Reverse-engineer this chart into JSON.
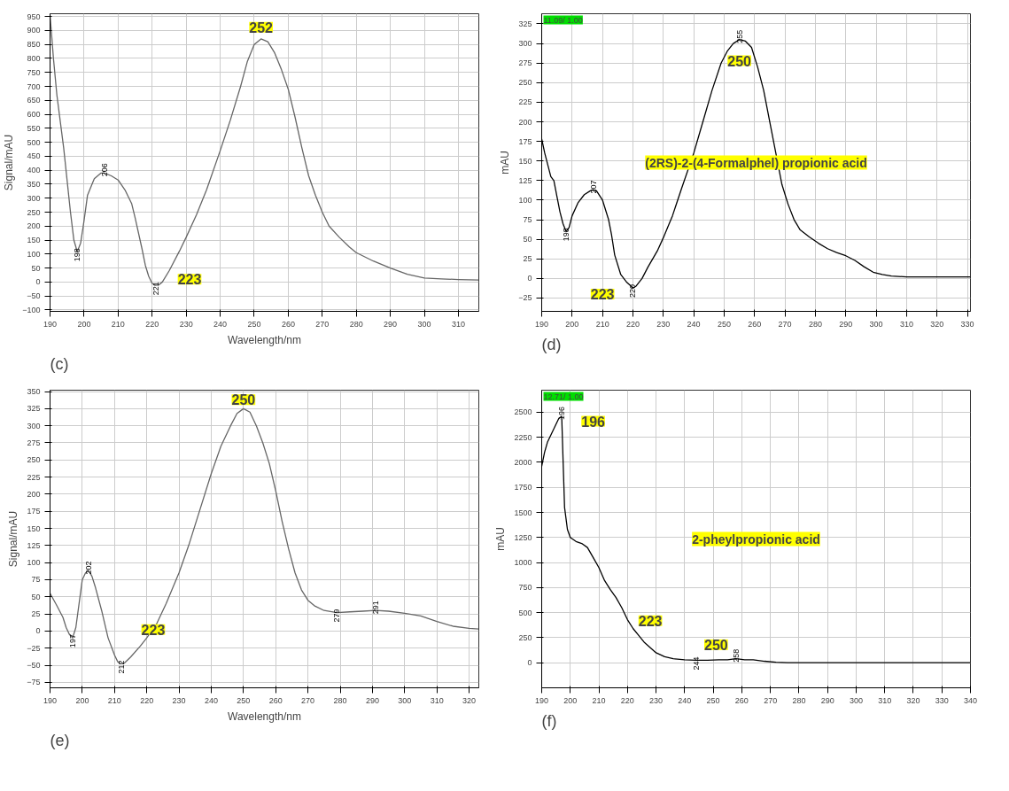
{
  "chart_data": [
    {
      "type": "line",
      "title": "(c)",
      "xlabel": "Wavelength/nm",
      "ylabel": "Signal/mAU",
      "grid": true,
      "xlim": [
        190,
        316
      ],
      "ylim": [
        -105,
        960
      ],
      "xticks": [
        190,
        200,
        210,
        220,
        230,
        240,
        250,
        260,
        270,
        280,
        290,
        300,
        310
      ],
      "yticks": [
        -100,
        -50,
        0,
        50,
        100,
        150,
        200,
        250,
        300,
        350,
        400,
        450,
        500,
        550,
        600,
        650,
        700,
        750,
        800,
        850,
        900,
        950
      ],
      "annotations": [
        {
          "text": "252",
          "x": 252,
          "y": 912
        },
        {
          "text": "223",
          "x": 231,
          "y": 10
        },
        {
          "text": "198",
          "x": 198,
          "y": 108
        },
        {
          "text": "206",
          "x": 206,
          "y": 390
        },
        {
          "text": "221",
          "x": 221,
          "y": -12
        }
      ],
      "series": [
        {
          "color": "#666666",
          "x": [
            190,
            191,
            192,
            194,
            196,
            197,
            198,
            199,
            200,
            201,
            203,
            205,
            206,
            208,
            210,
            212,
            214,
            215,
            217,
            218,
            219,
            220,
            221,
            222,
            223,
            225,
            228,
            230,
            233,
            236,
            240,
            243,
            246,
            248,
            250,
            252,
            254,
            256,
            258,
            260,
            262,
            264,
            266,
            268,
            270,
            272,
            275,
            278,
            280,
            285,
            290,
            295,
            300,
            305,
            310,
            316
          ],
          "values": [
            955,
            800,
            670,
            480,
            250,
            150,
            108,
            140,
            220,
            310,
            370,
            390,
            390,
            380,
            365,
            330,
            280,
            230,
            120,
            60,
            20,
            -5,
            -12,
            -10,
            0,
            40,
            110,
            160,
            240,
            330,
            470,
            580,
            700,
            790,
            850,
            870,
            860,
            820,
            760,
            690,
            590,
            480,
            380,
            310,
            250,
            200,
            160,
            125,
            105,
            75,
            50,
            28,
            14,
            11,
            9,
            7
          ]
        }
      ]
    },
    {
      "type": "line",
      "title": "(d)",
      "subtitle": "(2RS)-2-(4-Formalphel) propionic acid",
      "ylabel": "mAU",
      "grid": true,
      "xlim": [
        190,
        331
      ],
      "ylim": [
        -42,
        338
      ],
      "xticks": [
        190,
        200,
        210,
        220,
        230,
        240,
        250,
        260,
        270,
        280,
        290,
        300,
        310,
        320,
        330
      ],
      "yticks": [
        -25,
        0,
        25,
        50,
        75,
        100,
        125,
        150,
        175,
        200,
        225,
        250,
        275,
        300,
        325
      ],
      "annotations": [
        "11.09/ 1.00",
        {
          "text": "250",
          "x": 255,
          "y": 278
        },
        {
          "text": "223",
          "x": 210,
          "y": -20
        },
        {
          "text": "198",
          "x": 198,
          "y": 60
        },
        {
          "text": "207",
          "x": 207,
          "y": 113
        },
        {
          "text": "220",
          "x": 220,
          "y": -12
        },
        {
          "text": "255",
          "x": 255,
          "y": 305
        }
      ],
      "series": [
        {
          "color": "#000000",
          "x": [
            190,
            191,
            192,
            193,
            194,
            195,
            196,
            197,
            198,
            199,
            200,
            202,
            204,
            206,
            207,
            208,
            210,
            212,
            213,
            214,
            216,
            218,
            220,
            221,
            223,
            225,
            228,
            230,
            233,
            236,
            240,
            243,
            246,
            249,
            251,
            253,
            255,
            257,
            259,
            261,
            263,
            265,
            267,
            269,
            271,
            273,
            275,
            278,
            281,
            284,
            287,
            290,
            293,
            296,
            299,
            302,
            305,
            310,
            320,
            331
          ],
          "values": [
            178,
            160,
            145,
            130,
            125,
            105,
            85,
            70,
            60,
            65,
            80,
            97,
            107,
            112,
            113,
            112,
            100,
            75,
            55,
            30,
            5,
            -5,
            -12,
            -10,
            0,
            15,
            35,
            52,
            80,
            115,
            160,
            200,
            240,
            275,
            290,
            300,
            305,
            303,
            295,
            270,
            240,
            200,
            160,
            120,
            95,
            75,
            62,
            53,
            45,
            38,
            33,
            29,
            23,
            15,
            8,
            5,
            3,
            2,
            2,
            2
          ]
        }
      ]
    },
    {
      "type": "line",
      "title": "(e)",
      "xlabel": "Wavelength/nm",
      "ylabel": "Signal/mAU",
      "grid": true,
      "xlim": [
        190,
        323
      ],
      "ylim": [
        -83,
        352
      ],
      "xticks": [
        190,
        200,
        210,
        220,
        230,
        240,
        250,
        260,
        270,
        280,
        290,
        300,
        310,
        320
      ],
      "yticks": [
        -75,
        -50,
        -25,
        0,
        25,
        50,
        75,
        100,
        125,
        150,
        175,
        200,
        225,
        250,
        275,
        300,
        325,
        350
      ],
      "annotations": [
        {
          "text": "250",
          "x": 250,
          "y": 338
        },
        {
          "text": "223",
          "x": 222,
          "y": 2
        },
        {
          "text": "197",
          "x": 197,
          "y": -10
        },
        {
          "text": "202",
          "x": 202,
          "y": 88
        },
        {
          "text": "212",
          "x": 212,
          "y": -48
        },
        {
          "text": "279",
          "x": 279,
          "y": 27
        },
        {
          "text": "291",
          "x": 291,
          "y": 30
        }
      ],
      "series": [
        {
          "color": "#666666",
          "x": [
            190,
            192,
            194,
            195,
            196,
            197,
            198,
            199,
            200,
            201,
            202,
            203,
            204,
            206,
            208,
            210,
            211,
            212,
            213,
            215,
            218,
            220,
            223,
            226,
            230,
            233,
            236,
            240,
            243,
            246,
            248,
            250,
            252,
            254,
            256,
            258,
            260,
            262,
            264,
            266,
            268,
            270,
            272,
            275,
            279,
            283,
            287,
            291,
            295,
            300,
            305,
            310,
            315,
            320,
            323
          ],
          "values": [
            55,
            38,
            20,
            5,
            -5,
            -10,
            5,
            40,
            75,
            85,
            88,
            80,
            65,
            30,
            -10,
            -35,
            -45,
            -48,
            -47,
            -38,
            -22,
            -10,
            10,
            40,
            85,
            125,
            170,
            230,
            270,
            300,
            318,
            325,
            320,
            300,
            275,
            245,
            205,
            160,
            120,
            85,
            60,
            45,
            37,
            30,
            27,
            28,
            29,
            30,
            29,
            26,
            22,
            14,
            7,
            4,
            3
          ]
        }
      ]
    },
    {
      "type": "line",
      "title": "(f)",
      "subtitle": "2-pheylpropionic acid",
      "ylabel": "mAU",
      "grid": true,
      "xlim": [
        190,
        340
      ],
      "ylim": [
        -250,
        2720
      ],
      "xticks": [
        190,
        200,
        210,
        220,
        230,
        240,
        250,
        260,
        270,
        280,
        290,
        300,
        310,
        320,
        330,
        340
      ],
      "yticks": [
        0,
        250,
        500,
        750,
        1000,
        1250,
        1500,
        1750,
        2000,
        2250,
        2500
      ],
      "annotations": [
        "12.71/ 1.00",
        {
          "text": "196",
          "x": 208,
          "y": 2410
        },
        {
          "text": "223",
          "x": 228,
          "y": 420
        },
        {
          "text": "250",
          "x": 251,
          "y": 180
        },
        {
          "text": "196",
          "x": 197,
          "y": 2460
        },
        {
          "text": "244",
          "x": 244,
          "y": 25
        },
        {
          "text": "258",
          "x": 258,
          "y": 40
        }
      ],
      "series": [
        {
          "color": "#000000",
          "x": [
            190,
            191,
            192,
            194,
            196,
            197,
            197.5,
            198,
            199,
            200,
            202,
            204,
            206,
            208,
            210,
            212,
            214,
            216,
            218,
            220,
            222,
            224,
            226,
            228,
            230,
            233,
            236,
            240,
            244,
            248,
            252,
            255,
            258,
            261,
            264,
            268,
            272,
            276,
            280,
            300,
            340
          ],
          "values": [
            1960,
            2100,
            2200,
            2320,
            2440,
            2460,
            2000,
            1550,
            1330,
            1250,
            1210,
            1190,
            1150,
            1050,
            950,
            820,
            730,
            650,
            550,
            430,
            340,
            270,
            200,
            150,
            100,
            60,
            40,
            30,
            25,
            25,
            30,
            30,
            40,
            30,
            30,
            15,
            5,
            0,
            0,
            0,
            0
          ]
        }
      ]
    }
  ]
}
